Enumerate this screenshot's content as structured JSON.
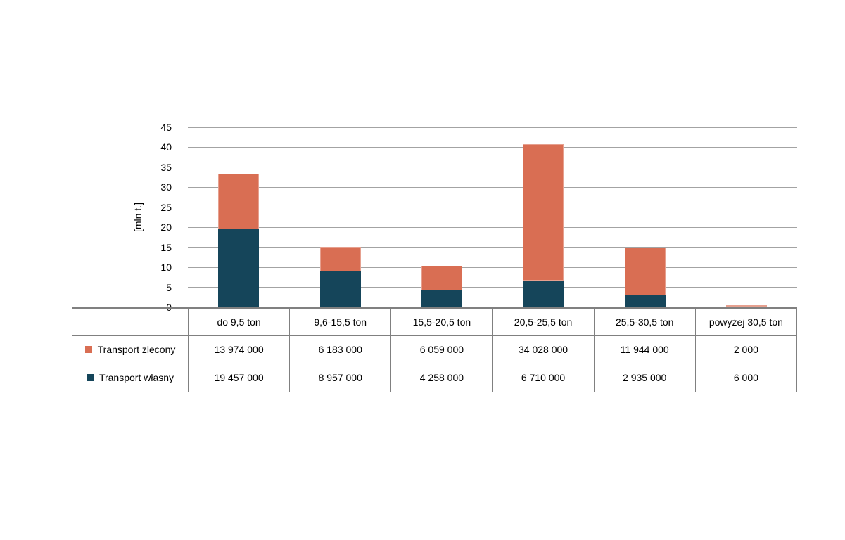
{
  "page": {
    "background": "#ffffff"
  },
  "chart_data": {
    "type": "bar",
    "stacked": true,
    "title": "",
    "xlabel": "",
    "ylabel": "[mln t.]",
    "ylim": [
      0,
      45
    ],
    "y_ticks": [
      0,
      5,
      10,
      15,
      20,
      25,
      30,
      35,
      40,
      45
    ],
    "grid": true,
    "legend_position": "table rows left of data table",
    "value_divisor": 1000000,
    "categories": [
      "do 9,5 ton",
      "9,6-15,5 ton",
      "15,5-20,5 ton",
      "20,5-25,5 ton",
      "25,5-30,5 ton",
      "powyżej 30,5 ton"
    ],
    "series": [
      {
        "name": "Transport zlecony",
        "color": "#d96e53",
        "values": [
          13974000,
          6183000,
          6059000,
          34028000,
          11944000,
          2000
        ],
        "labels": [
          "13 974 000",
          "6 183 000",
          "6 059 000",
          "34 028 000",
          "11 944 000",
          "2 000"
        ]
      },
      {
        "name": "Transport własny",
        "color": "#15455a",
        "values": [
          19457000,
          8957000,
          4258000,
          6710000,
          2935000,
          6000
        ],
        "labels": [
          "19 457 000",
          "8 957 000",
          "4 258 000",
          "6 710 000",
          "2 935 000",
          "6 000"
        ]
      }
    ],
    "stack_order_bottom_to_top": [
      "Transport własny",
      "Transport zlecony"
    ]
  },
  "style": {
    "gridline_color": "#a3a3a3",
    "axis_color": "#808080",
    "table_border_color": "#808080",
    "text_color": "#000000"
  }
}
